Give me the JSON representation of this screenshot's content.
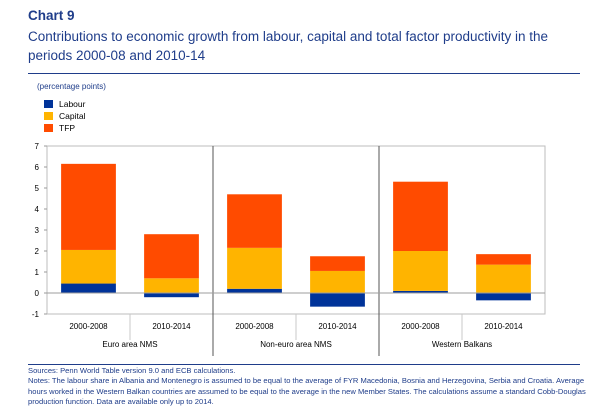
{
  "header": {
    "label": "Chart 9",
    "title": "Contributions to economic growth from labour, capital and total factor productivity in the periods 2000-08 and 2010-14",
    "units": "(percentage points)"
  },
  "legend": [
    {
      "name": "Labour",
      "color": "#003399"
    },
    {
      "name": "Capital",
      "color": "#ffb400"
    },
    {
      "name": "TFP",
      "color": "#ff4b00"
    }
  ],
  "chart_data": {
    "type": "bar",
    "stacked": true,
    "groups": [
      "Euro area NMS",
      "Non-euro area NMS",
      "Western Balkans"
    ],
    "categories": [
      "2000-2008",
      "2010-2014",
      "2000-2008",
      "2010-2014",
      "2000-2008",
      "2010-2014"
    ],
    "series": [
      {
        "name": "Labour",
        "color": "#003399",
        "values": [
          0.45,
          -0.2,
          0.2,
          -0.65,
          0.1,
          -0.35
        ]
      },
      {
        "name": "Capital",
        "color": "#ffb400",
        "values": [
          1.6,
          0.7,
          1.95,
          1.05,
          1.9,
          1.35
        ]
      },
      {
        "name": "TFP",
        "color": "#ff4b00",
        "values": [
          4.1,
          2.1,
          2.55,
          0.7,
          3.3,
          0.5
        ]
      }
    ],
    "ylim": [
      -1,
      7
    ],
    "yticks": [
      -1,
      0,
      1,
      2,
      3,
      4,
      5,
      6,
      7
    ],
    "ylabel": "percentage points",
    "grid": false,
    "legend_position": "top-left"
  },
  "footnotes": {
    "sources": "Sources: Penn World Table version 9.0 and ECB calculations.",
    "notes": "Notes: The labour share in Albania and Montenegro is assumed to be equal to the average of FYR Macedonia, Bosnia and Herzegovina, Serbia and Croatia. Average hours worked in the Western Balkan countries are assumed to be equal to the average in the new Member States. The calculations assume a standard Cobb-Douglas production function. Data are available only up to 2014."
  }
}
